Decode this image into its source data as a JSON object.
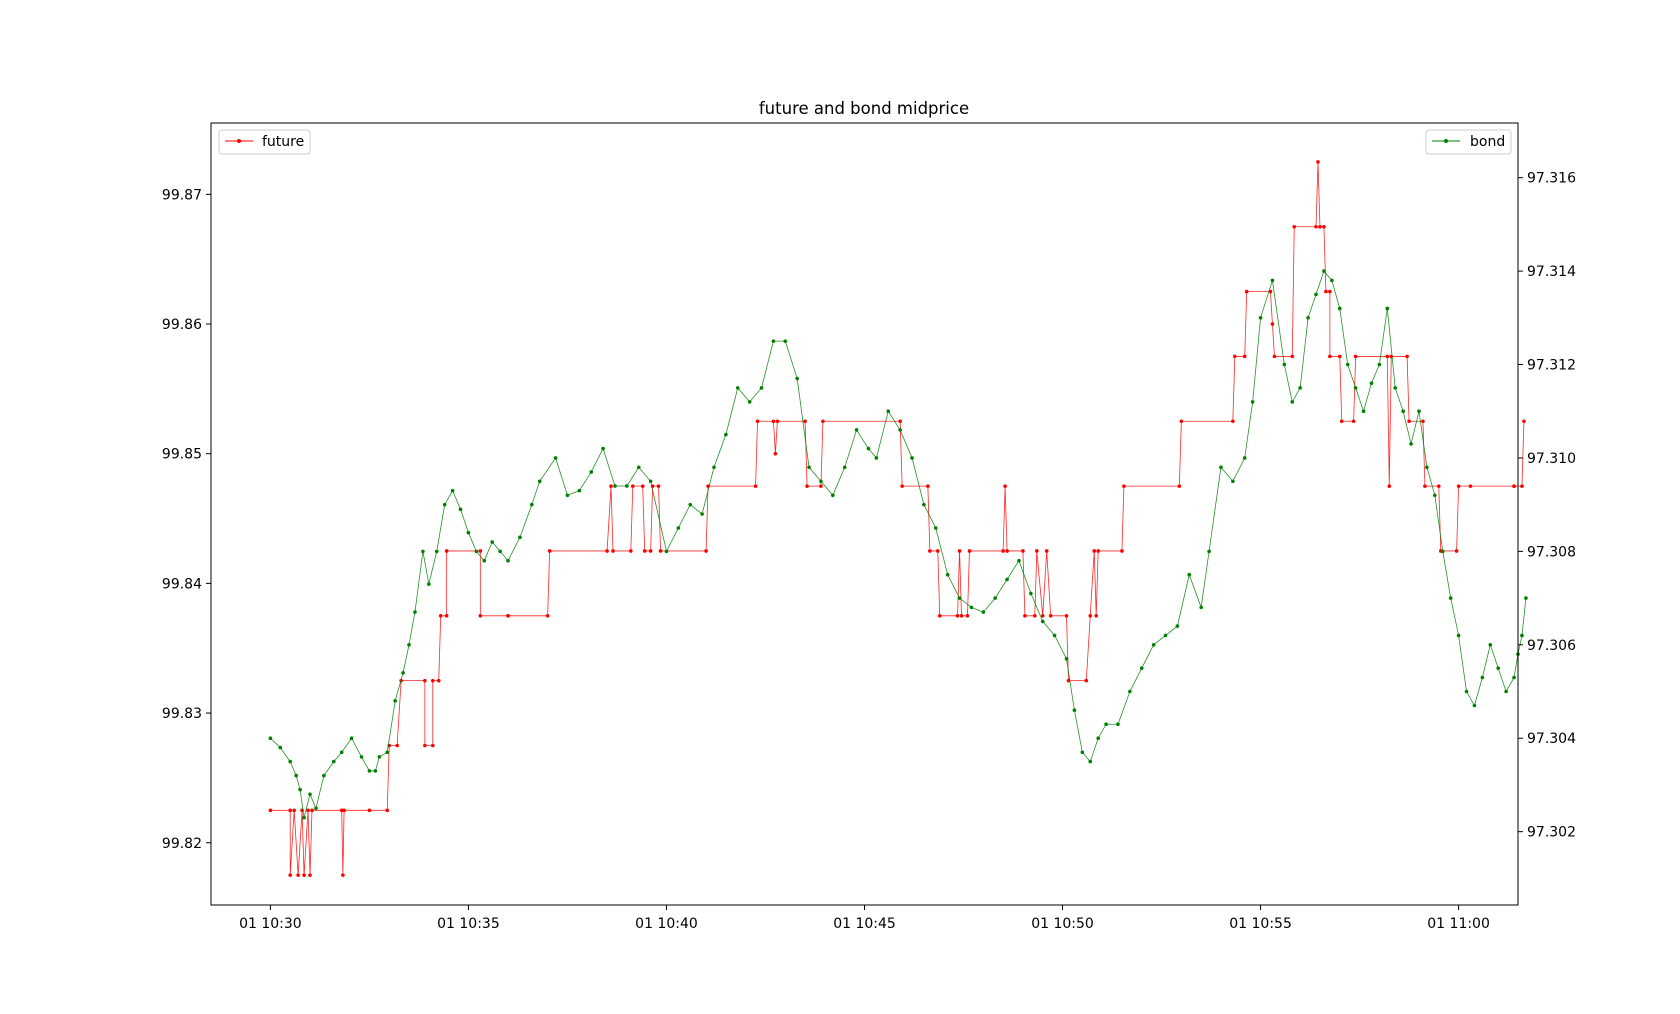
{
  "chart_data": {
    "type": "line",
    "title": "future and bond midprice",
    "x_ticks": [
      "01 10:30",
      "01 10:35",
      "01 10:40",
      "01 10:45",
      "01 10:50",
      "01 10:55",
      "01 11:00"
    ],
    "x_range_minutes": [
      -1.5,
      31.5
    ],
    "y_left": {
      "range": [
        99.8152,
        99.8755
      ],
      "ticks": [
        "99.82",
        "99.83",
        "99.84",
        "99.85",
        "99.86",
        "99.87"
      ]
    },
    "y_right": {
      "range": [
        97.30043,
        97.31717
      ],
      "ticks": [
        "97.302",
        "97.304",
        "97.306",
        "97.308",
        "97.310",
        "97.312",
        "97.314",
        "97.316"
      ]
    },
    "grid": false,
    "series": [
      {
        "name": "future",
        "axis": "left",
        "color": "#ff0000",
        "marker": "circle",
        "points": [
          [
            0.0,
            99.8225
          ],
          [
            0.5,
            99.8225
          ],
          [
            0.5,
            99.8175
          ],
          [
            0.6,
            99.8225
          ],
          [
            0.7,
            99.8175
          ],
          [
            0.8,
            99.8225
          ],
          [
            0.85,
            99.8175
          ],
          [
            0.95,
            99.8225
          ],
          [
            1.0,
            99.8175
          ],
          [
            1.05,
            99.8225
          ],
          [
            1.8,
            99.8225
          ],
          [
            1.83,
            99.8175
          ],
          [
            1.86,
            99.8225
          ],
          [
            2.5,
            99.8225
          ],
          [
            2.95,
            99.8225
          ],
          [
            3.0,
            99.8275
          ],
          [
            3.2,
            99.8275
          ],
          [
            3.3,
            99.8325
          ],
          [
            3.9,
            99.8325
          ],
          [
            3.9,
            99.8275
          ],
          [
            4.1,
            99.8275
          ],
          [
            4.1,
            99.8325
          ],
          [
            4.25,
            99.8325
          ],
          [
            4.3,
            99.8375
          ],
          [
            4.45,
            99.8375
          ],
          [
            4.45,
            99.8425
          ],
          [
            5.3,
            99.8425
          ],
          [
            5.3,
            99.8375
          ],
          [
            6.0,
            99.8375
          ],
          [
            6.0,
            99.8375
          ],
          [
            7.0,
            99.8375
          ],
          [
            7.05,
            99.8425
          ],
          [
            8.5,
            99.8425
          ],
          [
            8.6,
            99.8475
          ],
          [
            8.65,
            99.8425
          ],
          [
            9.1,
            99.8425
          ],
          [
            9.15,
            99.8475
          ],
          [
            9.4,
            99.8475
          ],
          [
            9.45,
            99.8425
          ],
          [
            9.6,
            99.8425
          ],
          [
            9.65,
            99.8475
          ],
          [
            9.8,
            99.8475
          ],
          [
            9.85,
            99.8425
          ],
          [
            11.0,
            99.8425
          ],
          [
            11.05,
            99.8475
          ],
          [
            12.25,
            99.8475
          ],
          [
            12.3,
            99.8525
          ],
          [
            12.7,
            99.8525
          ],
          [
            12.75,
            99.85
          ],
          [
            12.8,
            99.8525
          ],
          [
            13.5,
            99.8525
          ],
          [
            13.55,
            99.8475
          ],
          [
            13.9,
            99.8475
          ],
          [
            13.95,
            99.8525
          ],
          [
            15.9,
            99.8525
          ],
          [
            15.95,
            99.8475
          ],
          [
            16.6,
            99.8475
          ],
          [
            16.65,
            99.8425
          ],
          [
            16.85,
            99.8425
          ],
          [
            16.9,
            99.8375
          ],
          [
            17.35,
            99.8375
          ],
          [
            17.4,
            99.8425
          ],
          [
            17.45,
            99.8375
          ],
          [
            17.6,
            99.8375
          ],
          [
            17.65,
            99.8425
          ],
          [
            18.5,
            99.8425
          ],
          [
            18.55,
            99.8475
          ],
          [
            18.6,
            99.8425
          ],
          [
            19.0,
            99.8425
          ],
          [
            19.05,
            99.8375
          ],
          [
            19.3,
            99.8375
          ],
          [
            19.35,
            99.8425
          ],
          [
            19.5,
            99.8375
          ],
          [
            19.6,
            99.8425
          ],
          [
            19.7,
            99.8375
          ],
          [
            20.1,
            99.8375
          ],
          [
            20.15,
            99.8325
          ],
          [
            20.6,
            99.8325
          ],
          [
            20.7,
            99.8375
          ],
          [
            20.8,
            99.8425
          ],
          [
            20.85,
            99.8375
          ],
          [
            20.9,
            99.8425
          ],
          [
            21.5,
            99.8425
          ],
          [
            21.55,
            99.8475
          ],
          [
            22.95,
            99.8475
          ],
          [
            23.0,
            99.8525
          ],
          [
            24.3,
            99.8525
          ],
          [
            24.35,
            99.8575
          ],
          [
            24.6,
            99.8575
          ],
          [
            24.65,
            99.8625
          ],
          [
            25.25,
            99.8625
          ],
          [
            25.3,
            99.86
          ],
          [
            25.35,
            99.8575
          ],
          [
            25.8,
            99.8575
          ],
          [
            25.85,
            99.8675
          ],
          [
            26.4,
            99.8675
          ],
          [
            26.45,
            99.8725
          ],
          [
            26.5,
            99.8675
          ],
          [
            26.6,
            99.8675
          ],
          [
            26.65,
            99.8625
          ],
          [
            26.75,
            99.8625
          ],
          [
            26.75,
            99.8575
          ],
          [
            27.0,
            99.8575
          ],
          [
            27.05,
            99.8525
          ],
          [
            27.35,
            99.8525
          ],
          [
            27.4,
            99.8575
          ],
          [
            28.2,
            99.8575
          ],
          [
            28.25,
            99.8475
          ],
          [
            28.3,
            99.8575
          ],
          [
            28.7,
            99.8575
          ],
          [
            28.75,
            99.8525
          ],
          [
            29.1,
            99.8525
          ],
          [
            29.15,
            99.8475
          ],
          [
            29.5,
            99.8475
          ],
          [
            29.55,
            99.8425
          ],
          [
            29.95,
            99.8425
          ],
          [
            30.0,
            99.8475
          ],
          [
            30.3,
            99.8475
          ],
          [
            31.4,
            99.8475
          ],
          [
            31.4,
            99.8475
          ],
          [
            31.6,
            99.8475
          ],
          [
            31.65,
            99.8525
          ]
        ]
      },
      {
        "name": "bond",
        "axis": "right",
        "color": "#008000",
        "marker": "circle",
        "points": [
          [
            0.0,
            97.304
          ],
          [
            0.25,
            97.3038
          ],
          [
            0.5,
            97.3035
          ],
          [
            0.65,
            97.3032
          ],
          [
            0.75,
            97.3029
          ],
          [
            0.85,
            97.3023
          ],
          [
            1.0,
            97.3028
          ],
          [
            1.15,
            97.3025
          ],
          [
            1.35,
            97.3032
          ],
          [
            1.6,
            97.3035
          ],
          [
            1.8,
            97.3037
          ],
          [
            2.05,
            97.304
          ],
          [
            2.3,
            97.3036
          ],
          [
            2.5,
            97.3033
          ],
          [
            2.65,
            97.3033
          ],
          [
            2.75,
            97.3036
          ],
          [
            2.95,
            97.3037
          ],
          [
            3.15,
            97.3048
          ],
          [
            3.35,
            97.3054
          ],
          [
            3.5,
            97.306
          ],
          [
            3.65,
            97.3067
          ],
          [
            3.85,
            97.308
          ],
          [
            4.0,
            97.3073
          ],
          [
            4.2,
            97.308
          ],
          [
            4.4,
            97.309
          ],
          [
            4.6,
            97.3093
          ],
          [
            4.8,
            97.3089
          ],
          [
            5.0,
            97.3084
          ],
          [
            5.2,
            97.308
          ],
          [
            5.4,
            97.3078
          ],
          [
            5.6,
            97.3082
          ],
          [
            5.8,
            97.308
          ],
          [
            6.0,
            97.3078
          ],
          [
            6.3,
            97.3083
          ],
          [
            6.6,
            97.309
          ],
          [
            6.8,
            97.3095
          ],
          [
            7.2,
            97.31
          ],
          [
            7.5,
            97.3092
          ],
          [
            7.8,
            97.3093
          ],
          [
            8.1,
            97.3097
          ],
          [
            8.4,
            97.3102
          ],
          [
            8.7,
            97.3094
          ],
          [
            9.0,
            97.3094
          ],
          [
            9.3,
            97.3098
          ],
          [
            9.6,
            97.3095
          ],
          [
            10.0,
            97.308
          ],
          [
            10.3,
            97.3085
          ],
          [
            10.6,
            97.309
          ],
          [
            10.9,
            97.3088
          ],
          [
            11.2,
            97.3098
          ],
          [
            11.5,
            97.3105
          ],
          [
            11.8,
            97.3115
          ],
          [
            12.1,
            97.3112
          ],
          [
            12.4,
            97.3115
          ],
          [
            12.7,
            97.3125
          ],
          [
            13.0,
            97.3125
          ],
          [
            13.3,
            97.3117
          ],
          [
            13.6,
            97.3098
          ],
          [
            13.9,
            97.3095
          ],
          [
            14.2,
            97.3092
          ],
          [
            14.5,
            97.3098
          ],
          [
            14.8,
            97.3106
          ],
          [
            15.1,
            97.3102
          ],
          [
            15.3,
            97.31
          ],
          [
            15.6,
            97.311
          ],
          [
            15.9,
            97.3106
          ],
          [
            16.2,
            97.31
          ],
          [
            16.5,
            97.309
          ],
          [
            16.8,
            97.3085
          ],
          [
            17.1,
            97.3075
          ],
          [
            17.4,
            97.307
          ],
          [
            17.7,
            97.3068
          ],
          [
            18.0,
            97.3067
          ],
          [
            18.3,
            97.307
          ],
          [
            18.6,
            97.3074
          ],
          [
            18.9,
            97.3078
          ],
          [
            19.2,
            97.3071
          ],
          [
            19.5,
            97.3065
          ],
          [
            19.8,
            97.3062
          ],
          [
            20.1,
            97.3057
          ],
          [
            20.3,
            97.3046
          ],
          [
            20.5,
            97.3037
          ],
          [
            20.7,
            97.3035
          ],
          [
            20.9,
            97.304
          ],
          [
            21.1,
            97.3043
          ],
          [
            21.4,
            97.3043
          ],
          [
            21.7,
            97.305
          ],
          [
            22.0,
            97.3055
          ],
          [
            22.3,
            97.306
          ],
          [
            22.6,
            97.3062
          ],
          [
            22.9,
            97.3064
          ],
          [
            23.2,
            97.3075
          ],
          [
            23.5,
            97.3068
          ],
          [
            23.7,
            97.308
          ],
          [
            24.0,
            97.3098
          ],
          [
            24.3,
            97.3095
          ],
          [
            24.6,
            97.31
          ],
          [
            24.8,
            97.3112
          ],
          [
            25.0,
            97.313
          ],
          [
            25.3,
            97.3138
          ],
          [
            25.6,
            97.312
          ],
          [
            25.8,
            97.3112
          ],
          [
            26.0,
            97.3115
          ],
          [
            26.2,
            97.313
          ],
          [
            26.4,
            97.3135
          ],
          [
            26.6,
            97.314
          ],
          [
            26.8,
            97.3138
          ],
          [
            27.0,
            97.3132
          ],
          [
            27.2,
            97.312
          ],
          [
            27.4,
            97.3115
          ],
          [
            27.6,
            97.311
          ],
          [
            27.8,
            97.3116
          ],
          [
            28.0,
            97.312
          ],
          [
            28.2,
            97.3132
          ],
          [
            28.4,
            97.3115
          ],
          [
            28.6,
            97.311
          ],
          [
            28.8,
            97.3103
          ],
          [
            29.0,
            97.311
          ],
          [
            29.2,
            97.3098
          ],
          [
            29.4,
            97.3092
          ],
          [
            29.6,
            97.308
          ],
          [
            29.8,
            97.307
          ],
          [
            30.0,
            97.3062
          ],
          [
            30.2,
            97.305
          ],
          [
            30.4,
            97.3047
          ],
          [
            30.6,
            97.3053
          ],
          [
            30.8,
            97.306
          ],
          [
            31.0,
            97.3055
          ],
          [
            31.2,
            97.305
          ],
          [
            31.4,
            97.3053
          ],
          [
            31.5,
            97.3058
          ],
          [
            31.6,
            97.3062
          ],
          [
            31.7,
            97.307
          ]
        ]
      }
    ]
  },
  "legend": {
    "left_label": "future",
    "right_label": "bond"
  }
}
